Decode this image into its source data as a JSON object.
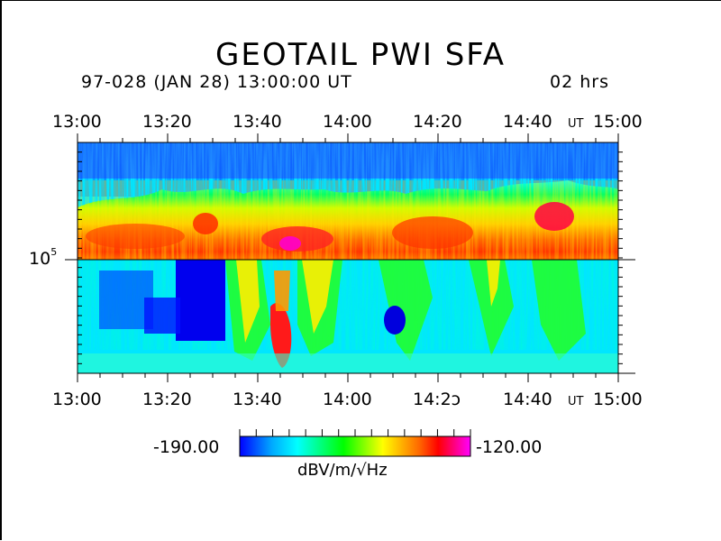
{
  "header": {
    "title": "GEOTAIL PWI SFA",
    "subtitle": "97-028 (JAN 28) 13:00:00 UT",
    "duration": "02 hrs"
  },
  "chart_data": {
    "type": "heatmap",
    "title": "GEOTAIL PWI SFA",
    "xlabel": "UT",
    "x_ticks": [
      "13:00",
      "13:20",
      "13:40",
      "14:00",
      "14:20",
      "14:40",
      "15:00"
    ],
    "x_ticks_bottom": [
      "13:00",
      "13:20",
      "13:40",
      "14:00",
      "14:2ɔ",
      "14:40",
      "15:00"
    ],
    "x_unit_label": "UT",
    "y_scale": "log",
    "y_tick_label_base": "10",
    "y_tick_label_exp": "5",
    "colorbar": {
      "min_label": "-190.00",
      "max_label": "-120.00",
      "unit_label": "dBV/m/√Hz",
      "colors": [
        "#0000ff",
        "#00ffff",
        "#00ff00",
        "#ffff00",
        "#ff0000",
        "#ff00ff"
      ]
    },
    "features": [
      {
        "name": "upper band",
        "time_range": [
          "13:00",
          "15:00"
        ],
        "level": "high (-130 to -125)"
      },
      {
        "name": "dark blue patch",
        "time_range": [
          "13:05",
          "13:32"
        ],
        "level": "-190"
      },
      {
        "name": "dark blue patch",
        "time_range": [
          "14:07",
          "14:13"
        ],
        "level": "-190"
      },
      {
        "name": "red burst",
        "time_range": [
          "13:42",
          "13:48"
        ],
        "level": "-125"
      }
    ]
  }
}
